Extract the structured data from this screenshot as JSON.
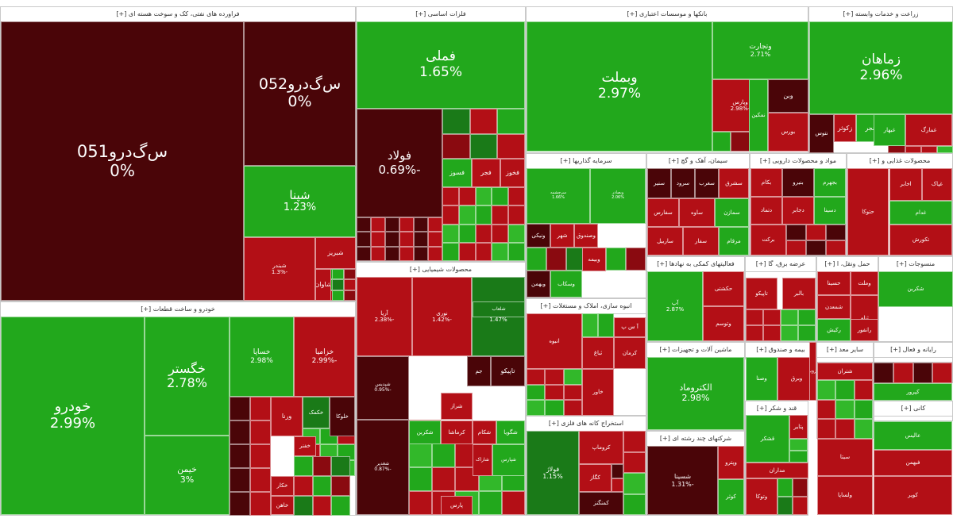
{
  "palette": {
    "dkred": "#4a0508",
    "red": "#b30f16",
    "mred": "#8a0a10",
    "green": "#22a81c",
    "dgreen": "#1a7a18",
    "lgreen": "#32b82a",
    "dk2": "#2c6e1c"
  },
  "sectors": [
    {
      "title": "فراورده های نفتی، کک و سوخت هسته ای [+]"
    },
    {
      "title": "فلزات اساسی [+]"
    },
    {
      "title": "بانکها و موسسات اعتباری [+]"
    },
    {
      "title": "زراعت و خدمات وابسته [+]"
    },
    {
      "title": "خودرو و ساخت قطعات [+]"
    },
    {
      "title": "محصولات شیمیایی [+]"
    },
    {
      "title": "سرمایه گذاریها [+]"
    },
    {
      "title": "سیمان، آهک و گچ [+]"
    },
    {
      "title": "مواد و محصولات دارویی [+]"
    },
    {
      "title": "محصولات غذایی و [+]"
    },
    {
      "title": "فعالیتهای کمکی به نهادها [+]"
    },
    {
      "title": "عرضه برق، گا [+]"
    },
    {
      "title": "حمل ونقل، ا [+]"
    },
    {
      "title": "منسوجات [+]"
    },
    {
      "title": "انبوه سازی، املاک و مستغلات [+]"
    },
    {
      "title": "ماشین آلات و تجهیزات [+]"
    },
    {
      "title": "استخراج کانه های فلزی [+]"
    },
    {
      "title": "شرکتهای چند رشته ای [+]"
    },
    {
      "title": "قند و شکر [+]"
    },
    {
      "title": "مخابرات [+]"
    },
    {
      "title": "رایانه و فعال [+]"
    },
    {
      "title": "سایر معد [+]"
    },
    {
      "title": "لاستیک [+]"
    },
    {
      "title": "بیمه و صندوق [+]"
    },
    {
      "title": "کاشی و [+]"
    },
    {
      "title": "ماشین آلا [+]"
    },
    {
      "title": "کانی [+]"
    },
    {
      "title": "ساخ [+]"
    },
    {
      "title": "سا [+]"
    }
  ],
  "chart_data": {
    "type": "heatmap",
    "tiles": [
      {
        "name": "س‌گ‌درو051",
        "change": "0%",
        "color": "dkred"
      },
      {
        "name": "س‌گ‌درو052",
        "change": "0%",
        "color": "dkred"
      },
      {
        "name": "شپنا",
        "change": "1.23%",
        "color": "green"
      },
      {
        "name": "شبندر",
        "change": "-1.3%",
        "color": "red"
      },
      {
        "name": "شبریز",
        "change": "",
        "color": "red"
      },
      {
        "name": "شاوان",
        "change": "",
        "color": "red"
      },
      {
        "name": "فملی",
        "change": "1.65%",
        "color": "green"
      },
      {
        "name": "فولاد",
        "change": "-0.69%",
        "color": "dkred"
      },
      {
        "name": "فخوز",
        "change": "",
        "color": "red"
      },
      {
        "name": "فجر",
        "change": "",
        "color": "red"
      },
      {
        "name": "فسوز",
        "change": "",
        "color": "green"
      },
      {
        "name": "وبملت",
        "change": "2.97%",
        "color": "green"
      },
      {
        "name": "وتجارت",
        "change": "2.71%",
        "color": "green"
      },
      {
        "name": "وپارس",
        "change": "-2.98%",
        "color": "red"
      },
      {
        "name": "وبن",
        "change": "",
        "color": "dkred"
      },
      {
        "name": "زماهان",
        "change": "2.96%",
        "color": "green"
      },
      {
        "name": "زفجر",
        "change": "",
        "color": "green"
      },
      {
        "name": "زکوثر",
        "change": "",
        "color": "red"
      },
      {
        "name": "خودرو",
        "change": "2.99%",
        "color": "green"
      },
      {
        "name": "خگستر",
        "change": "2.78%",
        "color": "green"
      },
      {
        "name": "خیمن",
        "change": "3%",
        "color": "green"
      },
      {
        "name": "خساپا",
        "change": "2.98%",
        "color": "green"
      },
      {
        "name": "خزامیا",
        "change": "-2.99%",
        "color": "red"
      },
      {
        "name": "ورنا",
        "change": "",
        "color": "red"
      },
      {
        "name": "خکمک",
        "change": "",
        "color": "dgreen"
      },
      {
        "name": "خلوکا",
        "change": "",
        "color": "dkred"
      },
      {
        "name": "خفنر",
        "change": "",
        "color": "red"
      },
      {
        "name": "خکار",
        "change": "",
        "color": "red"
      },
      {
        "name": "خاهن",
        "change": "",
        "color": "red"
      },
      {
        "name": "آریا",
        "change": "-2.38%",
        "color": "red"
      },
      {
        "name": "نوری",
        "change": "-1.42%",
        "color": "red"
      },
      {
        "name": "شفارس",
        "change": "1.47%",
        "color": "dgreen"
      },
      {
        "name": "شپدیس",
        "change": "-0.95%",
        "color": "dkred"
      },
      {
        "name": "جم",
        "change": "",
        "color": "dkred"
      },
      {
        "name": "تاپیکو",
        "change": "",
        "color": "dkred"
      },
      {
        "name": "شغدیر",
        "change": "-0.87%",
        "color": "dkred"
      },
      {
        "name": "شیراز",
        "change": "",
        "color": "red"
      },
      {
        "name": "شراز",
        "change": "",
        "color": "red"
      },
      {
        "name": "شکربن",
        "change": "",
        "color": "green"
      },
      {
        "name": "شکام",
        "change": "",
        "color": "red"
      },
      {
        "name": "کرماشا",
        "change": "",
        "color": "red"
      },
      {
        "name": "شگویا",
        "change": "",
        "color": "green"
      },
      {
        "name": "پارس",
        "change": "",
        "color": "red"
      },
      {
        "name": "شلعاب",
        "change": "",
        "color": "dgreen"
      },
      {
        "name": "شپارس",
        "change": "",
        "color": "green"
      },
      {
        "name": "شاراک",
        "change": "",
        "color": "red"
      },
      {
        "name": "سرچشمه",
        "change": "1.66%",
        "color": "green"
      },
      {
        "name": "وبصادر",
        "change": "2.06%",
        "color": "green"
      },
      {
        "name": "ونیکی",
        "change": "",
        "color": "dkred"
      },
      {
        "name": "وبهمن",
        "change": "",
        "color": "dkred"
      },
      {
        "name": "وصندوق",
        "change": "",
        "color": "red"
      },
      {
        "name": "وسکاب",
        "change": "",
        "color": "green"
      },
      {
        "name": "شهر",
        "change": "",
        "color": "red"
      },
      {
        "name": "وبیمه",
        "change": "",
        "color": "red"
      },
      {
        "name": "آپ",
        "change": "2.87%",
        "color": "green"
      },
      {
        "name": "حکشتی",
        "change": "",
        "color": "red"
      },
      {
        "name": "وتوسم",
        "change": "",
        "color": "red"
      },
      {
        "name": "شکربن",
        "change": "",
        "color": "green"
      },
      {
        "name": "ثامان",
        "change": "",
        "color": "green"
      },
      {
        "name": "ثاخت",
        "change": "",
        "color": "red"
      },
      {
        "name": "آ س پ",
        "change": "",
        "color": "red"
      },
      {
        "name": "ثباغ",
        "change": "",
        "color": "red"
      },
      {
        "name": "انبوه",
        "change": "",
        "color": "red"
      },
      {
        "name": "خاور",
        "change": "",
        "color": "red"
      },
      {
        "name": "کرمان",
        "change": "",
        "color": "red"
      },
      {
        "name": "الکتروماد",
        "change": "2.98%",
        "color": "green"
      },
      {
        "name": "فولاژ",
        "change": "1.15%",
        "color": "dgreen"
      },
      {
        "name": "کروماپ",
        "change": "",
        "color": "red"
      },
      {
        "name": "کگاز",
        "change": "",
        "color": "red"
      },
      {
        "name": "کمنگنز",
        "change": "",
        "color": "dkred"
      },
      {
        "name": "شسینا",
        "change": "-1.31%",
        "color": "dkred"
      },
      {
        "name": "وپترو",
        "change": "",
        "color": "red"
      },
      {
        "name": "کوثر",
        "change": "",
        "color": "green"
      },
      {
        "name": "وصنا",
        "change": "",
        "color": "green"
      },
      {
        "name": "وبرق",
        "change": "",
        "color": "red"
      },
      {
        "name": "تاپیکو",
        "change": "",
        "color": "red"
      },
      {
        "name": "بالبر",
        "change": "",
        "color": "red"
      },
      {
        "name": "قشکر",
        "change": "",
        "color": "green"
      },
      {
        "name": "پتایر",
        "change": "",
        "color": "red"
      },
      {
        "name": "وتوکا",
        "change": "",
        "color": "red"
      },
      {
        "name": "برکت",
        "change": "",
        "color": "red"
      },
      {
        "name": "تکورش",
        "change": "",
        "color": "red"
      },
      {
        "name": "غدام",
        "change": "",
        "color": "green"
      },
      {
        "name": "حتوکا",
        "change": "",
        "color": "red"
      },
      {
        "name": "حسینا",
        "change": "",
        "color": "red"
      },
      {
        "name": "وملت",
        "change": "",
        "color": "red"
      },
      {
        "name": "شمعدن",
        "change": "",
        "color": "red"
      },
      {
        "name": "ثنام",
        "change": "",
        "color": "red"
      },
      {
        "name": "سنیر",
        "change": "",
        "color": "dkred"
      },
      {
        "name": "سرود",
        "change": "",
        "color": "dkred"
      },
      {
        "name": "سغرب",
        "change": "",
        "color": "dkred"
      },
      {
        "name": "سشرق",
        "change": "",
        "color": "red"
      },
      {
        "name": "سفارس",
        "change": "",
        "color": "red"
      },
      {
        "name": "ساوه",
        "change": "",
        "color": "red"
      },
      {
        "name": "سمازن",
        "change": "",
        "color": "green"
      },
      {
        "name": "ساربیل",
        "change": "",
        "color": "red"
      },
      {
        "name": "سفار",
        "change": "",
        "color": "red"
      },
      {
        "name": "مرقام",
        "change": "",
        "color": "green"
      },
      {
        "name": "بکام",
        "change": "",
        "color": "red"
      },
      {
        "name": "بنیرو",
        "change": "",
        "color": "dkred"
      },
      {
        "name": "بجهرم",
        "change": "",
        "color": "green"
      },
      {
        "name": "دتماد",
        "change": "",
        "color": "red"
      },
      {
        "name": "دجابر",
        "change": "",
        "color": "red"
      },
      {
        "name": "دسینا",
        "change": "",
        "color": "green"
      },
      {
        "name": "غپاک",
        "change": "",
        "color": "red"
      },
      {
        "name": "غمارگ",
        "change": "",
        "color": "red"
      },
      {
        "name": "غبهار",
        "change": "",
        "color": "green"
      },
      {
        "name": "نتوس",
        "change": "",
        "color": "dkred"
      },
      {
        "name": "بورس",
        "change": "",
        "color": "red"
      },
      {
        "name": "نمکین",
        "change": "",
        "color": "green"
      },
      {
        "name": "ولساپا",
        "change": "",
        "color": "red"
      },
      {
        "name": "کویر",
        "change": "",
        "color": "red"
      },
      {
        "name": "سیتا",
        "change": "",
        "color": "red"
      },
      {
        "name": "عالیس",
        "change": "",
        "color": "green"
      },
      {
        "name": "فبهمن",
        "change": "",
        "color": "red"
      },
      {
        "name": "شتران",
        "change": "",
        "color": "red"
      },
      {
        "name": "کپرور",
        "change": "",
        "color": "green"
      },
      {
        "name": "قزوین",
        "change": "",
        "color": "red"
      },
      {
        "name": "مداران",
        "change": "",
        "color": "red"
      },
      {
        "name": "اخابر",
        "change": "",
        "color": "red"
      },
      {
        "name": "رانفور",
        "change": "",
        "color": "red"
      },
      {
        "name": "رکیش",
        "change": "",
        "color": "green"
      }
    ]
  }
}
